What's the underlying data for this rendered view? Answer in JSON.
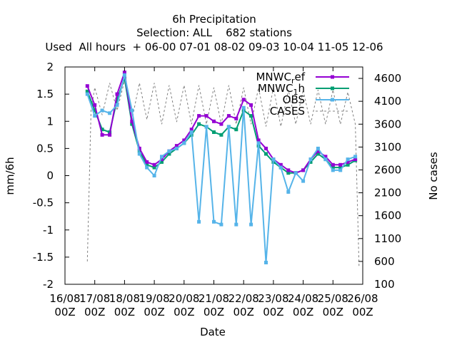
{
  "chart_data": {
    "type": "line",
    "title_lines": [
      "6h Precipitation",
      "Selection: ALL    682 stations",
      "Used  All hours  + 06-00 07-01 08-02 09-03 10-04 11-05 12-06"
    ],
    "xlabel": "Date",
    "ylabel": "mm/6h",
    "y2label": "No cases",
    "xlim": [
      "16/08 00Z",
      "26/08 00Z"
    ],
    "ylim": [
      -2,
      2
    ],
    "y2lim": [
      100,
      4850
    ],
    "x_ticks": [
      "16/08 00Z",
      "17/08 00Z",
      "18/08 00Z",
      "19/08 00Z",
      "20/08 00Z",
      "21/08 00Z",
      "22/08 00Z",
      "23/08 00Z",
      "24/08 00Z",
      "25/08 00Z",
      "26/08 00Z"
    ],
    "x_tick_labels": [
      [
        "16/08",
        "00Z"
      ],
      [
        "17/08",
        "00Z"
      ],
      [
        "18/08",
        "00Z"
      ],
      [
        "19/08",
        "00Z"
      ],
      [
        "20/08",
        "00Z"
      ],
      [
        "21/08",
        "00Z"
      ],
      [
        "22/08",
        "00Z"
      ],
      [
        "23/08",
        "00Z"
      ],
      [
        "24/08",
        "00Z"
      ],
      [
        "25/08",
        "00Z"
      ],
      [
        "26/08",
        "00Z"
      ]
    ],
    "y_ticks": [
      "-2",
      "-1.5",
      "-1",
      "-0.5",
      "0",
      "0.5",
      "1",
      "1.5",
      "2"
    ],
    "y2_ticks": [
      "100",
      "600",
      "1100",
      "1600",
      "2100",
      "2600",
      "3100",
      "3600",
      "4100",
      "4600"
    ],
    "legend": [
      {
        "label": "MNWC",
        "sub": "r",
        "tail": "ef",
        "color": "#9400d3",
        "style": "line-points",
        "series": "MNWC_ref"
      },
      {
        "label": "MNWC",
        "sub": "1",
        "tail": "h",
        "color": "#009e73",
        "style": "line-points",
        "series": "MNWC_1h"
      },
      {
        "label": "OBS",
        "sub": "",
        "tail": "",
        "color": "#56b4e9",
        "style": "line-points",
        "series": "OBS"
      },
      {
        "label": "CASES",
        "sub": "",
        "tail": "",
        "color": "#808080",
        "style": "dashed",
        "series": "CASES"
      }
    ],
    "legend_position": "top-right",
    "grid": false,
    "series": [
      {
        "name": "MNWC_ref",
        "axis": "y",
        "color": "#9400d3",
        "x": [
          "2023-08-16 18:00",
          "2023-08-17 00:00",
          "2023-08-17 06:00",
          "2023-08-17 12:00",
          "2023-08-17 18:00",
          "2023-08-18 00:00",
          "2023-08-18 06:00",
          "2023-08-18 12:00",
          "2023-08-18 18:00",
          "2023-08-19 00:00",
          "2023-08-19 06:00",
          "2023-08-19 12:00",
          "2023-08-19 18:00",
          "2023-08-20 00:00",
          "2023-08-20 06:00",
          "2023-08-20 12:00",
          "2023-08-20 18:00",
          "2023-08-21 00:00",
          "2023-08-21 06:00",
          "2023-08-21 12:00",
          "2023-08-21 18:00",
          "2023-08-22 00:00",
          "2023-08-22 06:00",
          "2023-08-22 12:00",
          "2023-08-22 18:00",
          "2023-08-23 00:00",
          "2023-08-23 06:00",
          "2023-08-23 12:00",
          "2023-08-23 18:00",
          "2023-08-24 00:00",
          "2023-08-24 06:00",
          "2023-08-24 12:00",
          "2023-08-24 18:00",
          "2023-08-25 00:00",
          "2023-08-25 06:00",
          "2023-08-25 12:00",
          "2023-08-25 18:00"
        ],
        "y": [
          1.65,
          1.3,
          0.75,
          0.75,
          1.5,
          1.9,
          1.0,
          0.5,
          0.25,
          0.2,
          0.3,
          0.45,
          0.55,
          0.65,
          0.85,
          1.1,
          1.1,
          1.0,
          0.95,
          1.1,
          1.05,
          1.4,
          1.3,
          0.65,
          0.5,
          0.3,
          0.2,
          0.1,
          0.05,
          0.1,
          0.3,
          0.45,
          0.35,
          0.2,
          0.2,
          0.25,
          0.3
        ]
      },
      {
        "name": "MNWC_1h",
        "axis": "y",
        "color": "#009e73",
        "x": [
          "2023-08-16 18:00",
          "2023-08-17 00:00",
          "2023-08-17 06:00",
          "2023-08-17 12:00",
          "2023-08-17 18:00",
          "2023-08-18 00:00",
          "2023-08-18 06:00",
          "2023-08-18 12:00",
          "2023-08-18 18:00",
          "2023-08-19 00:00",
          "2023-08-19 06:00",
          "2023-08-19 12:00",
          "2023-08-19 18:00",
          "2023-08-20 00:00",
          "2023-08-20 06:00",
          "2023-08-20 12:00",
          "2023-08-20 18:00",
          "2023-08-21 00:00",
          "2023-08-21 06:00",
          "2023-08-21 12:00",
          "2023-08-21 18:00",
          "2023-08-22 00:00",
          "2023-08-22 06:00",
          "2023-08-22 12:00",
          "2023-08-22 18:00",
          "2023-08-23 00:00",
          "2023-08-23 06:00",
          "2023-08-23 12:00",
          "2023-08-23 18:00",
          "2023-08-24 00:00",
          "2023-08-24 06:00",
          "2023-08-24 12:00",
          "2023-08-24 18:00",
          "2023-08-25 00:00",
          "2023-08-25 06:00",
          "2023-08-25 12:00",
          "2023-08-25 18:00"
        ],
        "y": [
          1.55,
          1.2,
          0.85,
          0.8,
          1.4,
          1.8,
          0.95,
          0.45,
          0.2,
          0.15,
          0.25,
          0.4,
          0.5,
          0.6,
          0.75,
          0.95,
          0.9,
          0.8,
          0.75,
          0.9,
          0.85,
          1.2,
          1.1,
          0.55,
          0.4,
          0.25,
          0.15,
          0.05,
          0.05,
          0.1,
          0.25,
          0.4,
          0.3,
          0.15,
          0.15,
          0.2,
          0.28
        ]
      },
      {
        "name": "OBS",
        "axis": "y",
        "color": "#56b4e9",
        "x": [
          "2023-08-16 18:00",
          "2023-08-17 00:00",
          "2023-08-17 06:00",
          "2023-08-17 12:00",
          "2023-08-17 18:00",
          "2023-08-18 00:00",
          "2023-08-18 06:00",
          "2023-08-18 12:00",
          "2023-08-18 18:00",
          "2023-08-19 00:00",
          "2023-08-19 06:00",
          "2023-08-19 12:00",
          "2023-08-19 18:00",
          "2023-08-20 00:00",
          "2023-08-20 06:00",
          "2023-08-20 12:00",
          "2023-08-20 18:00",
          "2023-08-21 00:00",
          "2023-08-21 06:00",
          "2023-08-21 12:00",
          "2023-08-21 18:00",
          "2023-08-22 00:00",
          "2023-08-22 06:00",
          "2023-08-22 12:00",
          "2023-08-22 18:00",
          "2023-08-23 00:00",
          "2023-08-23 06:00",
          "2023-08-23 12:00",
          "2023-08-23 18:00",
          "2023-08-24 00:00",
          "2023-08-24 06:00",
          "2023-08-24 12:00",
          "2023-08-24 18:00",
          "2023-08-25 00:00",
          "2023-08-25 06:00",
          "2023-08-25 12:00",
          "2023-08-25 18:00"
        ],
        "y": [
          1.5,
          1.1,
          1.2,
          1.15,
          1.3,
          1.85,
          1.2,
          0.4,
          0.15,
          0.0,
          0.35,
          0.45,
          0.5,
          0.6,
          0.8,
          -0.85,
          0.9,
          -0.85,
          -0.9,
          0.9,
          -0.9,
          1.25,
          -0.9,
          0.6,
          -1.6,
          0.3,
          0.15,
          -0.3,
          0.05,
          -0.1,
          0.3,
          0.5,
          0.3,
          0.1,
          0.1,
          0.3,
          0.35
        ]
      },
      {
        "name": "CASES",
        "axis": "y2",
        "color": "#808080",
        "x": [
          "2023-08-16 18:00",
          "2023-08-16 21:00",
          "2023-08-17 00:00",
          "2023-08-17 06:00",
          "2023-08-17 12:00",
          "2023-08-17 18:00",
          "2023-08-18 00:00",
          "2023-08-18 06:00",
          "2023-08-18 12:00",
          "2023-08-18 18:00",
          "2023-08-19 00:00",
          "2023-08-19 06:00",
          "2023-08-19 12:00",
          "2023-08-19 18:00",
          "2023-08-20 00:00",
          "2023-08-20 06:00",
          "2023-08-20 12:00",
          "2023-08-20 18:00",
          "2023-08-21 00:00",
          "2023-08-21 06:00",
          "2023-08-21 12:00",
          "2023-08-21 18:00",
          "2023-08-22 00:00",
          "2023-08-22 06:00",
          "2023-08-22 12:00",
          "2023-08-22 18:00",
          "2023-08-23 00:00",
          "2023-08-23 06:00",
          "2023-08-23 12:00",
          "2023-08-23 18:00",
          "2023-08-24 00:00",
          "2023-08-24 06:00",
          "2023-08-24 12:00",
          "2023-08-24 18:00",
          "2023-08-25 00:00",
          "2023-08-25 06:00",
          "2023-08-25 12:00",
          "2023-08-25 18:00",
          "2023-08-25 21:00"
        ],
        "y": [
          600,
          3900,
          4400,
          3800,
          4500,
          3900,
          4550,
          3700,
          4500,
          3700,
          4500,
          3600,
          4450,
          3650,
          4450,
          3600,
          4450,
          3600,
          4400,
          3600,
          4450,
          3600,
          4400,
          3600,
          4400,
          3550,
          4400,
          3550,
          4350,
          3600,
          4350,
          3600,
          4350,
          3600,
          4350,
          3600,
          4300,
          3600,
          500
        ]
      }
    ]
  }
}
